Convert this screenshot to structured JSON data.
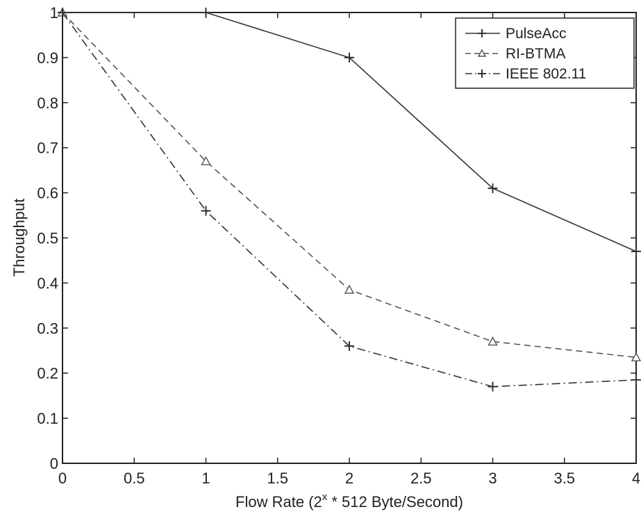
{
  "chart_data": {
    "type": "line",
    "xlabel": "Flow Rate (2^x * 512 Byte/Second)",
    "xlabel_parts": {
      "before": "Flow Rate (2",
      "superscript": "x",
      "after": " * 512 Byte/Second)"
    },
    "ylabel": "Throughput",
    "xlim": [
      0,
      4
    ],
    "ylim": [
      0,
      1
    ],
    "xticks": [
      "0",
      "0.5",
      "1",
      "1.5",
      "2",
      "2.5",
      "3",
      "3.5",
      "4"
    ],
    "yticks": [
      "0",
      "0.1",
      "0.2",
      "0.3",
      "0.4",
      "0.5",
      "0.6",
      "0.7",
      "0.8",
      "0.9",
      "1"
    ],
    "grid": false,
    "legend_position": "top-right",
    "series": [
      {
        "name": "PulseAcc",
        "x": [
          0,
          1,
          2,
          3,
          4
        ],
        "y": [
          1.0,
          1.0,
          0.9,
          0.61,
          0.47
        ],
        "marker": "plus",
        "line_style": "solid",
        "color": "#333333"
      },
      {
        "name": "RI-BTMA",
        "x": [
          0,
          1,
          2,
          3,
          4
        ],
        "y": [
          1.0,
          0.67,
          0.385,
          0.27,
          0.235
        ],
        "marker": "triangle",
        "line_style": "dashed",
        "color": "#555555"
      },
      {
        "name": "IEEE 802.11",
        "x": [
          0,
          1,
          2,
          3,
          4
        ],
        "y": [
          1.0,
          0.56,
          0.26,
          0.17,
          0.185
        ],
        "marker": "plus",
        "line_style": "dashdot",
        "color": "#333333"
      }
    ]
  }
}
